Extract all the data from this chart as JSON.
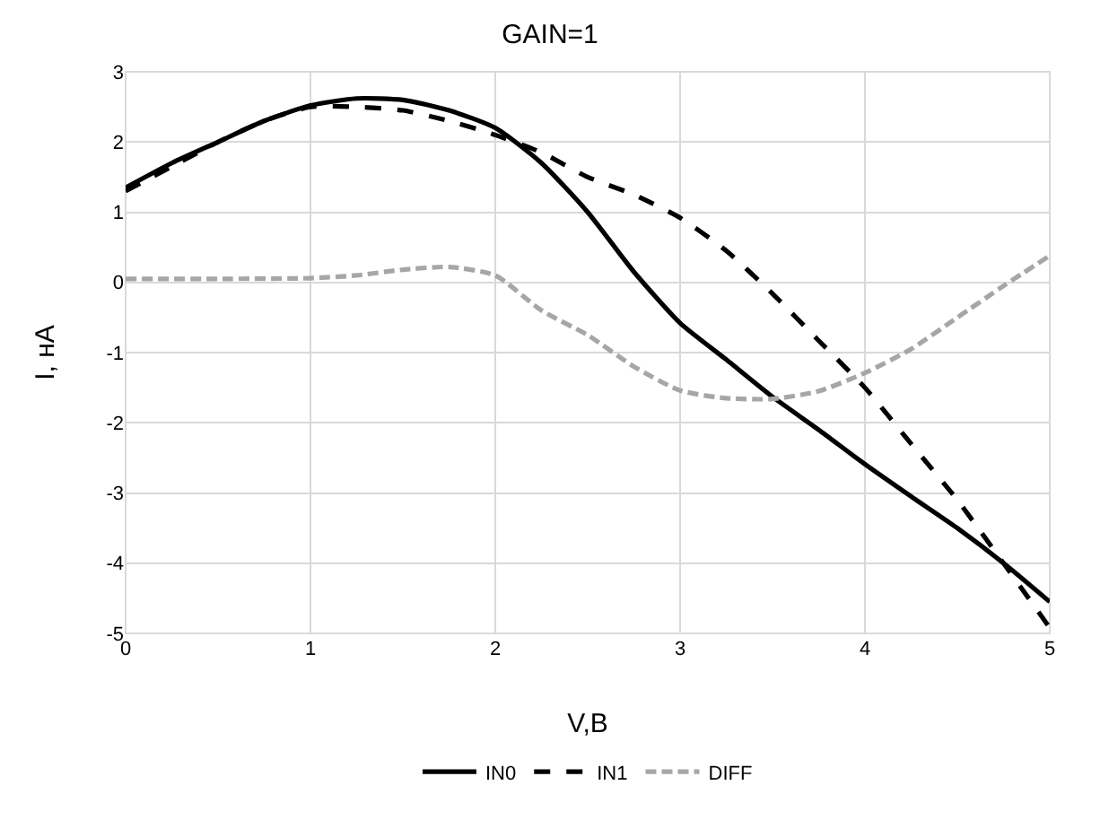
{
  "chart_data": {
    "type": "line",
    "title": "GAIN=1",
    "xlabel": "V,B",
    "ylabel": "I, нА",
    "xlim": [
      0,
      5
    ],
    "xticks": [
      0,
      1,
      2,
      3,
      4,
      5
    ],
    "ylim": [
      -5,
      3
    ],
    "yticks": [
      -5,
      -4,
      -3,
      -2,
      -1,
      0,
      1,
      2,
      3
    ],
    "grid": true,
    "legend": "bottom",
    "series": [
      {
        "name": "IN0",
        "color": "#000000",
        "line_style": "solid",
        "x": [
          0,
          0.25,
          0.5,
          0.75,
          1,
          1.25,
          1.5,
          1.75,
          2,
          2.25,
          2.5,
          2.75,
          3,
          3.25,
          3.5,
          3.75,
          4,
          4.25,
          4.5,
          4.75,
          5
        ],
        "values": [
          1.35,
          1.7,
          2.0,
          2.3,
          2.52,
          2.62,
          2.6,
          2.45,
          2.2,
          1.7,
          1.0,
          0.15,
          -0.58,
          -1.1,
          -1.63,
          -2.1,
          -2.59,
          -3.05,
          -3.5,
          -4.0,
          -4.55
        ]
      },
      {
        "name": "IN1",
        "color": "#000000",
        "line_style": "dashed",
        "x": [
          0,
          0.25,
          0.5,
          0.75,
          1,
          1.25,
          1.5,
          1.75,
          2,
          2.25,
          2.5,
          2.75,
          3,
          3.25,
          3.5,
          3.75,
          4,
          4.25,
          4.5,
          4.75,
          5
        ],
        "values": [
          1.3,
          1.65,
          2.0,
          2.3,
          2.5,
          2.5,
          2.45,
          2.3,
          2.1,
          1.85,
          1.5,
          1.25,
          0.92,
          0.45,
          -0.16,
          -0.83,
          -1.5,
          -2.3,
          -3.1,
          -4.0,
          -4.92
        ]
      },
      {
        "name": "DIFF",
        "color": "#a6a6a6",
        "line_style": "dotted",
        "x": [
          0,
          0.5,
          1,
          1.25,
          1.5,
          1.75,
          2,
          2.25,
          2.5,
          2.75,
          3,
          3.25,
          3.5,
          3.75,
          4,
          4.25,
          4.5,
          4.75,
          5
        ],
        "values": [
          0.05,
          0.05,
          0.06,
          0.1,
          0.18,
          0.22,
          0.1,
          -0.4,
          -0.75,
          -1.2,
          -1.54,
          -1.65,
          -1.66,
          -1.55,
          -1.29,
          -0.95,
          -0.5,
          -0.05,
          0.38
        ]
      }
    ]
  }
}
